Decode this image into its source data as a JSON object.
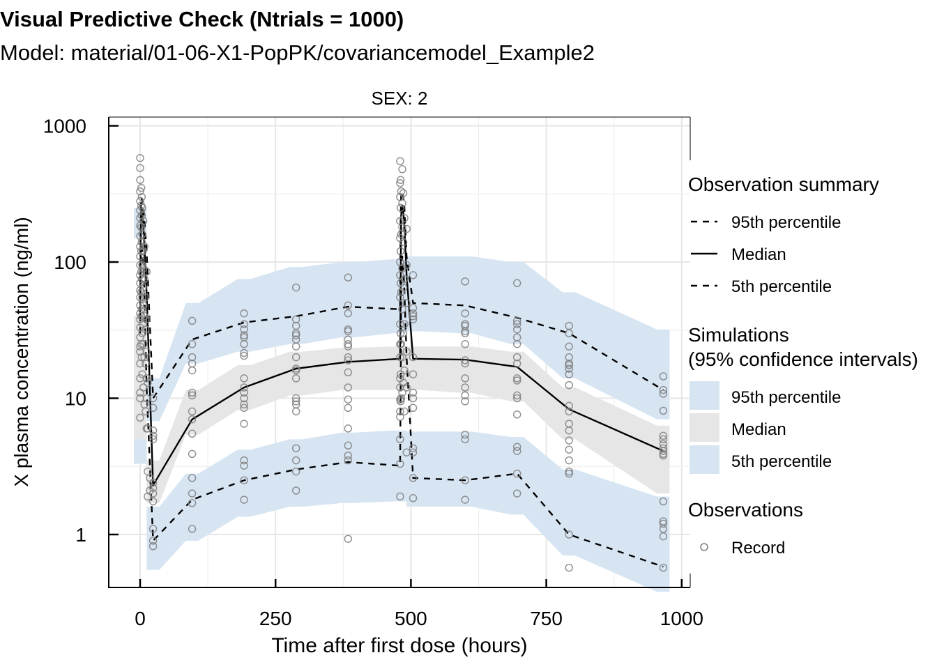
{
  "chart_data": {
    "type": "line",
    "title": "Visual Predictive Check (Ntrials = 1000)",
    "subtitle": "Model: material/01-06-X1-PopPK/covariancemodel_Example2",
    "facet_label": "SEX: 2",
    "xlabel": "Time after first dose (hours)",
    "ylabel": "X plasma concentration (ng/ml)",
    "x_ticks": [
      0,
      250,
      500,
      750,
      1000
    ],
    "y_ticks": [
      1,
      10,
      100,
      1000
    ],
    "y_scale": "log",
    "xlim": [
      -58,
      1015
    ],
    "ylim": [
      0.38,
      1150
    ],
    "grid": true,
    "legend_position": "right",
    "colors": {
      "ci_95": "#d7e5f3",
      "ci_median": "#e6e6e6",
      "ci_5": "#d7e5f3",
      "line": "#000000",
      "points": "#808080"
    },
    "legend": {
      "observation_summary": {
        "title": "Observation summary",
        "items": [
          "95th percentile",
          "Median",
          "5th percentile"
        ]
      },
      "simulations": {
        "title_line1": "Simulations",
        "title_line2": "(95% confidence intervals)",
        "items": [
          "95th percentile",
          "Median",
          "5th percentile"
        ]
      },
      "observations": {
        "title": "Observations",
        "items": [
          "Record"
        ]
      }
    },
    "bands": [
      {
        "name": "95th percentile CI",
        "x": [
          0,
          24,
          96,
          192,
          288,
          384,
          480,
          504,
          600,
          696,
          792,
          966
        ],
        "lower": [
          150,
          6.8,
          18,
          22,
          25,
          28,
          30,
          31,
          30,
          25,
          14,
          7
        ],
        "upper": [
          250,
          14,
          50,
          75,
          92,
          100,
          105,
          110,
          110,
          100,
          60,
          32
        ]
      },
      {
        "name": "Median CI",
        "x": [
          0,
          24,
          96,
          192,
          288,
          384,
          480,
          504,
          600,
          696,
          792,
          966
        ],
        "lower": [
          3.5,
          1.7,
          5.4,
          8.2,
          10.5,
          11.5,
          11.5,
          11.5,
          11,
          9.5,
          5,
          2
        ],
        "upper": [
          40,
          3.5,
          11.5,
          17.5,
          22,
          23.5,
          24,
          24,
          24,
          22,
          12,
          6.3
        ]
      },
      {
        "name": "5th percentile CI",
        "x": [
          0,
          24,
          96,
          192,
          288,
          384,
          480,
          504,
          600,
          696,
          792,
          966
        ],
        "lower": [
          3.3,
          0.55,
          0.9,
          1.35,
          1.6,
          1.7,
          1.75,
          1.6,
          1.6,
          1.4,
          0.7,
          0.38
        ],
        "upper": [
          5,
          1.6,
          2.8,
          4.2,
          5,
          5.6,
          5.8,
          5.7,
          5.7,
          5.2,
          3,
          1.9
        ]
      }
    ],
    "series": [
      {
        "name": "95th percentile",
        "style": "dashed",
        "x": [
          0,
          1,
          2,
          4,
          6,
          8,
          12,
          24,
          96,
          192,
          288,
          384,
          480,
          481,
          482,
          484,
          486,
          488,
          492,
          504,
          600,
          696,
          792,
          966
        ],
        "y": [
          50,
          200,
          300,
          280,
          250,
          200,
          120,
          10,
          27,
          36,
          40,
          47,
          45,
          200,
          320,
          330,
          300,
          250,
          110,
          50,
          48,
          39,
          30,
          11.5
        ]
      },
      {
        "name": "Median",
        "style": "solid",
        "x": [
          0,
          1,
          2,
          4,
          6,
          8,
          12,
          24,
          96,
          192,
          288,
          384,
          480,
          481,
          482,
          484,
          486,
          488,
          492,
          504,
          600,
          696,
          792,
          966
        ],
        "y": [
          40,
          150,
          250,
          230,
          180,
          130,
          60,
          2.3,
          7,
          12,
          16.5,
          18.5,
          19.5,
          60,
          220,
          260,
          230,
          180,
          80,
          19.5,
          19.2,
          17,
          8.3,
          4.1
        ]
      },
      {
        "name": "5th percentile",
        "style": "dashed",
        "x": [
          0,
          1,
          2,
          4,
          6,
          8,
          12,
          24,
          96,
          192,
          288,
          384,
          480,
          481,
          482,
          484,
          486,
          488,
          492,
          504,
          600,
          696,
          792,
          966
        ],
        "y": [
          30,
          100,
          140,
          120,
          90,
          60,
          12,
          0.9,
          1.8,
          2.5,
          3,
          3.4,
          3.2,
          10,
          60,
          110,
          90,
          60,
          20,
          2.6,
          2.5,
          2.8,
          1,
          0.58
        ]
      }
    ],
    "observations": [
      [
        0,
        7.2
      ],
      [
        0,
        10
      ],
      [
        0,
        11
      ],
      [
        0,
        14
      ],
      [
        0,
        18
      ],
      [
        0,
        22
      ],
      [
        0,
        24
      ],
      [
        0,
        28
      ],
      [
        0,
        33
      ],
      [
        0,
        38
      ],
      [
        0,
        42
      ],
      [
        0,
        48
      ],
      [
        0,
        55
      ],
      [
        0,
        62
      ],
      [
        0,
        70
      ],
      [
        0,
        80
      ],
      [
        0,
        95
      ],
      [
        0,
        110
      ],
      [
        0,
        130
      ],
      [
        0,
        155
      ],
      [
        0,
        185
      ],
      [
        0,
        210
      ],
      [
        0,
        240
      ],
      [
        0,
        280
      ],
      [
        0,
        330
      ],
      [
        0,
        400
      ],
      [
        0,
        490
      ],
      [
        0,
        580
      ],
      [
        2,
        25
      ],
      [
        2,
        40
      ],
      [
        2,
        60
      ],
      [
        2,
        85
      ],
      [
        2,
        120
      ],
      [
        2,
        180
      ],
      [
        2,
        260
      ],
      [
        2,
        350
      ],
      [
        3,
        20
      ],
      [
        3,
        45
      ],
      [
        3,
        75
      ],
      [
        3,
        140
      ],
      [
        3,
        220
      ],
      [
        3,
        300
      ],
      [
        4,
        15
      ],
      [
        4,
        30
      ],
      [
        4,
        55
      ],
      [
        4,
        95
      ],
      [
        4,
        160
      ],
      [
        4,
        250
      ],
      [
        5,
        35
      ],
      [
        5,
        65
      ],
      [
        5,
        120
      ],
      [
        6,
        12
      ],
      [
        6,
        25
      ],
      [
        6,
        48
      ],
      [
        6,
        90
      ],
      [
        6,
        200
      ],
      [
        8,
        9
      ],
      [
        8,
        20
      ],
      [
        8,
        40
      ],
      [
        8,
        75
      ],
      [
        8,
        130
      ],
      [
        10,
        8
      ],
      [
        10,
        18
      ],
      [
        10,
        32
      ],
      [
        10,
        55
      ],
      [
        12,
        6
      ],
      [
        12,
        10
      ],
      [
        12,
        14
      ],
      [
        12,
        22
      ],
      [
        12,
        38
      ],
      [
        12,
        85
      ],
      [
        14,
        1.9
      ],
      [
        14,
        2.9
      ],
      [
        14,
        6
      ],
      [
        14,
        13
      ],
      [
        18,
        2.1
      ],
      [
        18,
        2.6
      ],
      [
        24,
        0.82
      ],
      [
        24,
        0.9
      ],
      [
        24,
        1.1
      ],
      [
        24,
        1.75
      ],
      [
        24,
        2
      ],
      [
        24,
        2.2
      ],
      [
        24,
        2.4
      ],
      [
        24,
        5
      ],
      [
        24,
        5.3
      ],
      [
        24,
        5.8
      ],
      [
        24,
        8.5
      ],
      [
        24,
        10
      ],
      [
        96,
        1.1
      ],
      [
        96,
        1.7
      ],
      [
        96,
        2
      ],
      [
        96,
        2.6
      ],
      [
        96,
        3.9
      ],
      [
        96,
        5.5
      ],
      [
        96,
        7
      ],
      [
        96,
        8
      ],
      [
        96,
        10.5
      ],
      [
        96,
        11
      ],
      [
        96,
        16
      ],
      [
        96,
        18
      ],
      [
        96,
        20
      ],
      [
        96,
        25
      ],
      [
        96,
        37
      ],
      [
        192,
        1.8
      ],
      [
        192,
        2.5
      ],
      [
        192,
        3.2
      ],
      [
        192,
        3.5
      ],
      [
        192,
        6.5
      ],
      [
        192,
        8.5
      ],
      [
        192,
        9
      ],
      [
        192,
        10
      ],
      [
        192,
        11
      ],
      [
        192,
        12
      ],
      [
        192,
        14
      ],
      [
        192,
        20.5
      ],
      [
        192,
        21.5
      ],
      [
        192,
        25
      ],
      [
        192,
        28
      ],
      [
        192,
        29
      ],
      [
        192,
        32
      ],
      [
        192,
        35
      ],
      [
        192,
        42
      ],
      [
        288,
        2.1
      ],
      [
        288,
        2.9
      ],
      [
        288,
        3.5
      ],
      [
        288,
        4.3
      ],
      [
        288,
        8
      ],
      [
        288,
        9
      ],
      [
        288,
        9.5
      ],
      [
        288,
        10
      ],
      [
        288,
        14
      ],
      [
        288,
        16
      ],
      [
        288,
        16.5
      ],
      [
        288,
        20
      ],
      [
        288,
        24
      ],
      [
        288,
        27
      ],
      [
        288,
        29
      ],
      [
        288,
        30
      ],
      [
        288,
        34
      ],
      [
        288,
        38
      ],
      [
        288,
        65
      ],
      [
        384,
        0.93
      ],
      [
        384,
        3.5
      ],
      [
        384,
        3.8
      ],
      [
        384,
        4.5
      ],
      [
        384,
        6
      ],
      [
        384,
        8.5
      ],
      [
        384,
        9.8
      ],
      [
        384,
        12
      ],
      [
        384,
        15.5
      ],
      [
        384,
        19
      ],
      [
        384,
        20
      ],
      [
        384,
        24
      ],
      [
        384,
        25
      ],
      [
        384,
        27
      ],
      [
        384,
        31
      ],
      [
        384,
        32
      ],
      [
        384,
        42
      ],
      [
        384,
        48
      ],
      [
        384,
        77
      ],
      [
        480,
        1.9
      ],
      [
        480,
        3.3
      ],
      [
        480,
        5
      ],
      [
        480,
        7.3
      ],
      [
        480,
        8
      ],
      [
        480,
        9.8
      ],
      [
        480,
        12
      ],
      [
        480,
        14
      ],
      [
        480,
        20
      ],
      [
        480,
        25
      ],
      [
        480,
        35
      ],
      [
        480,
        55
      ],
      [
        480,
        80
      ],
      [
        480,
        100
      ],
      [
        480,
        150
      ],
      [
        480,
        200
      ],
      [
        480,
        300
      ],
      [
        480,
        380
      ],
      [
        480,
        550
      ],
      [
        481,
        9.5
      ],
      [
        481,
        15
      ],
      [
        481,
        30
      ],
      [
        481,
        70
      ],
      [
        481,
        120
      ],
      [
        481,
        250
      ],
      [
        481,
        400
      ],
      [
        482,
        10
      ],
      [
        482,
        25
      ],
      [
        482,
        60
      ],
      [
        482,
        160
      ],
      [
        482,
        330
      ],
      [
        484,
        11
      ],
      [
        484,
        20
      ],
      [
        484,
        45
      ],
      [
        484,
        90
      ],
      [
        484,
        180
      ],
      [
        484,
        270
      ],
      [
        484,
        480
      ],
      [
        486,
        13
      ],
      [
        486,
        30
      ],
      [
        486,
        65
      ],
      [
        486,
        140
      ],
      [
        486,
        320
      ],
      [
        488,
        8
      ],
      [
        488,
        16
      ],
      [
        488,
        35
      ],
      [
        488,
        75
      ],
      [
        488,
        210
      ],
      [
        492,
        4
      ],
      [
        492,
        12
      ],
      [
        492,
        22
      ],
      [
        492,
        50
      ],
      [
        492,
        95
      ],
      [
        492,
        175
      ],
      [
        504,
        1.85
      ],
      [
        504,
        2.6
      ],
      [
        504,
        4
      ],
      [
        504,
        4.3
      ],
      [
        504,
        8.5
      ],
      [
        504,
        10
      ],
      [
        504,
        11
      ],
      [
        504,
        15
      ],
      [
        504,
        20
      ],
      [
        504,
        38
      ],
      [
        504,
        40
      ],
      [
        504,
        42
      ],
      [
        504,
        46
      ],
      [
        504,
        80
      ],
      [
        600,
        1.8
      ],
      [
        600,
        2.5
      ],
      [
        600,
        5
      ],
      [
        600,
        5.4
      ],
      [
        600,
        9.5
      ],
      [
        600,
        10.5
      ],
      [
        600,
        12
      ],
      [
        600,
        14
      ],
      [
        600,
        18
      ],
      [
        600,
        19
      ],
      [
        600,
        25
      ],
      [
        600,
        30
      ],
      [
        600,
        31
      ],
      [
        600,
        34
      ],
      [
        600,
        35
      ],
      [
        600,
        42
      ],
      [
        600,
        72
      ],
      [
        696,
        2
      ],
      [
        696,
        2.8
      ],
      [
        696,
        4.1
      ],
      [
        696,
        4.4
      ],
      [
        696,
        7.6
      ],
      [
        696,
        10
      ],
      [
        696,
        10.5
      ],
      [
        696,
        13.5
      ],
      [
        696,
        14
      ],
      [
        696,
        18
      ],
      [
        696,
        20
      ],
      [
        696,
        25
      ],
      [
        696,
        28
      ],
      [
        696,
        32
      ],
      [
        696,
        35
      ],
      [
        696,
        37
      ],
      [
        696,
        70
      ],
      [
        792,
        0.57
      ],
      [
        792,
        1
      ],
      [
        792,
        2.8
      ],
      [
        792,
        2.9
      ],
      [
        792,
        3.5
      ],
      [
        792,
        4.2
      ],
      [
        792,
        4.9
      ],
      [
        792,
        5.8
      ],
      [
        792,
        6.5
      ],
      [
        792,
        8
      ],
      [
        792,
        8.8
      ],
      [
        792,
        12.5
      ],
      [
        792,
        15
      ],
      [
        792,
        16.5
      ],
      [
        792,
        17.5
      ],
      [
        792,
        18
      ],
      [
        792,
        20
      ],
      [
        792,
        24
      ],
      [
        792,
        30
      ],
      [
        792,
        34
      ],
      [
        966,
        0.57
      ],
      [
        966,
        0.97
      ],
      [
        966,
        1.1
      ],
      [
        966,
        1.2
      ],
      [
        966,
        1.25
      ],
      [
        966,
        1.75
      ],
      [
        966,
        3.8
      ],
      [
        966,
        3.9
      ],
      [
        966,
        4.1
      ],
      [
        966,
        4.3
      ],
      [
        966,
        4.6
      ],
      [
        966,
        5
      ],
      [
        966,
        5.3
      ],
      [
        966,
        8.1
      ],
      [
        966,
        10.8
      ],
      [
        966,
        11.5
      ],
      [
        966,
        14.5
      ]
    ]
  }
}
